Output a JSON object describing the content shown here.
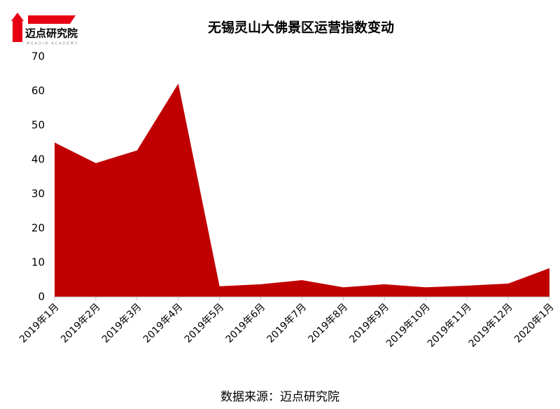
{
  "logo": {
    "name": "迈点研究院",
    "subtitle": "MEADIN ACADEMY"
  },
  "chart_data": {
    "type": "area",
    "title": "无锡灵山大佛景区运营指数变动",
    "categories": [
      "2019年1月",
      "2019年2月",
      "2019年3月",
      "2019年4月",
      "2019年5月",
      "2019年6月",
      "2019年7月",
      "2019年8月",
      "2019年9月",
      "2019年10月",
      "2019年11月",
      "2019年12月",
      "2020年1月"
    ],
    "values": [
      45,
      39,
      42.7,
      62.2,
      3.1,
      3.7,
      4.9,
      2.8,
      3.7,
      2.8,
      3.3,
      3.9,
      8.4
    ],
    "color": "#c00000",
    "ylim": [
      0,
      70
    ],
    "yticks": [
      0,
      10,
      20,
      30,
      40,
      50,
      60,
      70
    ],
    "source": "数据来源：迈点研究院"
  }
}
